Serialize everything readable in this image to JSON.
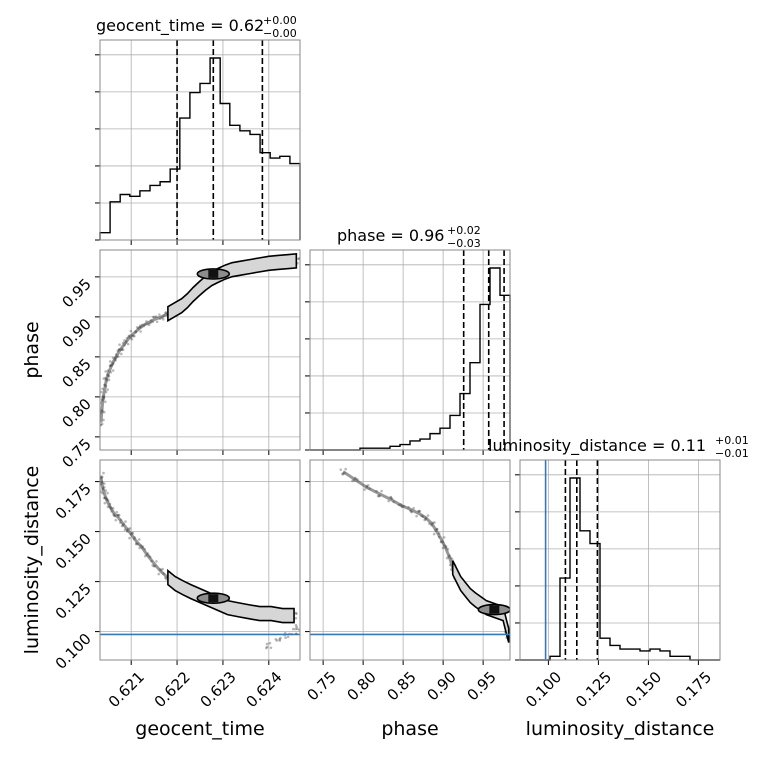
{
  "chart_data": {
    "type": "corner",
    "parameters": [
      "geocent_time",
      "phase",
      "luminosity_distance"
    ],
    "titles": [
      {
        "param": "geocent_time",
        "name": "geocent_time",
        "value": "0.62",
        "plus": "+0.00",
        "minus": "−0.00"
      },
      {
        "param": "phase",
        "name": "phase",
        "value": "0.96",
        "plus": "+0.02",
        "minus": "−0.03"
      },
      {
        "param": "luminosity_distance",
        "name": "luminosity_distance",
        "value": "0.11",
        "plus": "+0.01",
        "minus": "−0.01"
      }
    ],
    "axes": {
      "geocent_time": {
        "label": "geocent_time",
        "range": [
          0.62032,
          0.62468
        ],
        "ticks": [
          0.621,
          0.622,
          0.623,
          0.624
        ],
        "tick_labels": [
          "0.621",
          "0.622",
          "0.623",
          "0.624"
        ]
      },
      "phase": {
        "label": "phase",
        "range": [
          0.7336,
          0.9836
        ],
        "ticks": [
          0.75,
          0.8,
          0.85,
          0.9,
          0.95
        ],
        "tick_labels": [
          "0.75",
          "0.80",
          "0.85",
          "0.90",
          "0.95"
        ]
      },
      "luminosity_distance": {
        "label": "luminosity_distance",
        "range": [
          0.0858,
          0.1858
        ],
        "ticks": [
          0.1,
          0.125,
          0.15,
          0.175
        ],
        "tick_labels": [
          "0.100",
          "0.125",
          "0.150",
          "0.175"
        ]
      }
    },
    "histograms": {
      "geocent_time": {
        "edges": [
          0.62032,
          0.62054,
          0.62076,
          0.62097,
          0.62119,
          0.62141,
          0.62163,
          0.62185,
          0.62206,
          0.62228,
          0.6225,
          0.62272,
          0.62294,
          0.62315,
          0.62337,
          0.62359,
          0.62381,
          0.62403,
          0.62424,
          0.62446,
          0.62468
        ],
        "counts": [
          0.04,
          0.21,
          0.25,
          0.24,
          0.27,
          0.3,
          0.32,
          0.39,
          0.67,
          0.81,
          0.86,
          1.0,
          0.75,
          0.63,
          0.6,
          0.58,
          0.48,
          0.45,
          0.46,
          0.42
        ]
      },
      "phase": {
        "edges": [
          0.7336,
          0.7461,
          0.7586,
          0.7711,
          0.7836,
          0.7961,
          0.8086,
          0.8211,
          0.8336,
          0.8461,
          0.8586,
          0.8711,
          0.8836,
          0.8961,
          0.9086,
          0.9211,
          0.9336,
          0.9461,
          0.9586,
          0.9711,
          0.9836
        ],
        "counts": [
          0,
          0,
          0,
          0,
          0,
          0.01,
          0.01,
          0.01,
          0.02,
          0.03,
          0.05,
          0.06,
          0.09,
          0.12,
          0.19,
          0.31,
          0.48,
          0.8,
          1.0,
          0.85
        ]
      },
      "luminosity_distance": {
        "edges": [
          0.0858,
          0.0908,
          0.0958,
          0.1008,
          0.1058,
          0.1108,
          0.1158,
          0.1208,
          0.1258,
          0.1308,
          0.1358,
          0.1408,
          0.1458,
          0.1508,
          0.1558,
          0.1608,
          0.1658,
          0.1708,
          0.1758,
          0.1808,
          0.1858
        ],
        "counts": [
          0,
          0,
          0,
          0.02,
          0.45,
          1.0,
          0.71,
          0.64,
          0.12,
          0.08,
          0.06,
          0.06,
          0.05,
          0.06,
          0.05,
          0.02,
          0.02,
          0,
          0,
          0
        ]
      }
    },
    "quantiles": {
      "geocent_time": [
        0.622,
        0.62279,
        0.62386
      ],
      "phase": [
        0.9257,
        0.957,
        0.9762
      ],
      "luminosity_distance": [
        0.1085,
        0.1142,
        0.1245
      ]
    },
    "injection": {
      "luminosity_distance": 0.0986
    },
    "samples": {
      "phase_vs_geocent_time": [
        [
          0.62034,
          0.768
        ],
        [
          0.62036,
          0.781
        ],
        [
          0.62038,
          0.795
        ],
        [
          0.6204,
          0.803
        ],
        [
          0.62043,
          0.812
        ],
        [
          0.62046,
          0.822
        ],
        [
          0.6205,
          0.829
        ],
        [
          0.62055,
          0.836
        ],
        [
          0.6206,
          0.843
        ],
        [
          0.62066,
          0.849
        ],
        [
          0.62073,
          0.856
        ],
        [
          0.6208,
          0.862
        ],
        [
          0.62088,
          0.868
        ],
        [
          0.62096,
          0.874
        ],
        [
          0.62105,
          0.879
        ],
        [
          0.62115,
          0.884
        ],
        [
          0.62125,
          0.889
        ],
        [
          0.62138,
          0.893
        ],
        [
          0.62152,
          0.897
        ],
        [
          0.62166,
          0.9
        ],
        [
          0.6218,
          0.904
        ],
        [
          0.62195,
          0.909
        ],
        [
          0.6221,
          0.914
        ],
        [
          0.62222,
          0.92
        ],
        [
          0.62235,
          0.928
        ],
        [
          0.62248,
          0.935
        ],
        [
          0.62262,
          0.942
        ],
        [
          0.62276,
          0.948
        ],
        [
          0.6229,
          0.952
        ],
        [
          0.62305,
          0.956
        ],
        [
          0.6232,
          0.959
        ],
        [
          0.6234,
          0.961
        ],
        [
          0.6236,
          0.963
        ],
        [
          0.6238,
          0.965
        ],
        [
          0.624,
          0.967
        ],
        [
          0.6242,
          0.968
        ],
        [
          0.6244,
          0.969
        ],
        [
          0.6246,
          0.97
        ]
      ],
      "luminosity_distance_vs_geocent_time": [
        [
          0.62034,
          0.178
        ],
        [
          0.62036,
          0.174
        ],
        [
          0.62039,
          0.171
        ],
        [
          0.62043,
          0.168
        ],
        [
          0.62048,
          0.165
        ],
        [
          0.62055,
          0.162
        ],
        [
          0.62063,
          0.159
        ],
        [
          0.62072,
          0.157
        ],
        [
          0.62082,
          0.154
        ],
        [
          0.62092,
          0.151
        ],
        [
          0.62102,
          0.148
        ],
        [
          0.62112,
          0.145
        ],
        [
          0.62124,
          0.142
        ],
        [
          0.62136,
          0.138
        ],
        [
          0.6215,
          0.134
        ],
        [
          0.62165,
          0.13
        ],
        [
          0.6218,
          0.127
        ],
        [
          0.62196,
          0.124
        ],
        [
          0.62212,
          0.122
        ],
        [
          0.6223,
          0.12
        ],
        [
          0.6225,
          0.118
        ],
        [
          0.6227,
          0.116
        ],
        [
          0.6229,
          0.114
        ],
        [
          0.6231,
          0.112
        ],
        [
          0.62332,
          0.111
        ],
        [
          0.62355,
          0.11
        ],
        [
          0.6238,
          0.109
        ],
        [
          0.62405,
          0.109
        ],
        [
          0.6243,
          0.108
        ],
        [
          0.62455,
          0.108
        ],
        [
          0.624,
          0.093
        ],
        [
          0.6242,
          0.096
        ],
        [
          0.6244,
          0.098
        ],
        [
          0.62455,
          0.1
        ],
        [
          0.62465,
          0.102
        ]
      ],
      "luminosity_distance_vs_phase": [
        [
          0.775,
          0.18
        ],
        [
          0.79,
          0.176
        ],
        [
          0.805,
          0.172
        ],
        [
          0.82,
          0.169
        ],
        [
          0.835,
          0.166
        ],
        [
          0.848,
          0.163
        ],
        [
          0.86,
          0.161
        ],
        [
          0.87,
          0.159
        ],
        [
          0.878,
          0.157
        ],
        [
          0.886,
          0.154
        ],
        [
          0.892,
          0.15
        ],
        [
          0.898,
          0.146
        ],
        [
          0.903,
          0.142
        ],
        [
          0.908,
          0.137
        ],
        [
          0.912,
          0.132
        ],
        [
          0.917,
          0.128
        ],
        [
          0.922,
          0.124
        ],
        [
          0.928,
          0.121
        ],
        [
          0.934,
          0.118
        ],
        [
          0.94,
          0.116
        ],
        [
          0.947,
          0.114
        ],
        [
          0.954,
          0.112
        ],
        [
          0.961,
          0.111
        ],
        [
          0.968,
          0.11
        ],
        [
          0.975,
          0.109
        ],
        [
          0.98,
          0.101
        ],
        [
          0.982,
          0.098
        ]
      ]
    },
    "density_peaks": {
      "phase_vs_geocent_time": [
        0.62279,
        0.9537
      ],
      "luminosity_distance_vs_geocent_time": [
        0.62279,
        0.1167
      ],
      "luminosity_distance_vs_phase": [
        0.964,
        0.111
      ]
    }
  }
}
